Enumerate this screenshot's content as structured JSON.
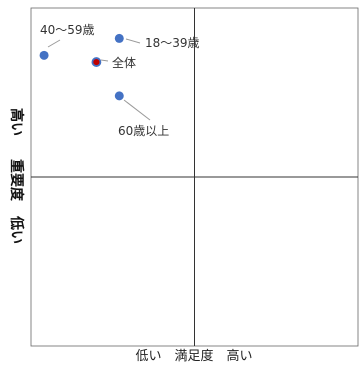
{
  "chart_data": {
    "type": "scatter",
    "title": "",
    "xlabel": "低い　満足度　高い",
    "ylabel_top": "高い",
    "ylabel_middle": "重要度",
    "ylabel_bottom": "低い",
    "xlim": [
      0,
      100
    ],
    "ylim": [
      0,
      100
    ],
    "grid": false,
    "quadrant_lines": {
      "x": 50,
      "y": 50
    },
    "points": [
      {
        "label": "40〜59歳",
        "x": 4,
        "y": 86,
        "color": "#4472C4"
      },
      {
        "label": "18〜39歳",
        "x": 27,
        "y": 91,
        "color": "#4472C4"
      },
      {
        "label": "全体",
        "x": 20,
        "y": 84,
        "color": "#C00000",
        "ring": "#4472C4"
      },
      {
        "label": "60歳以上",
        "x": 27,
        "y": 74,
        "color": "#4472C4"
      }
    ]
  }
}
